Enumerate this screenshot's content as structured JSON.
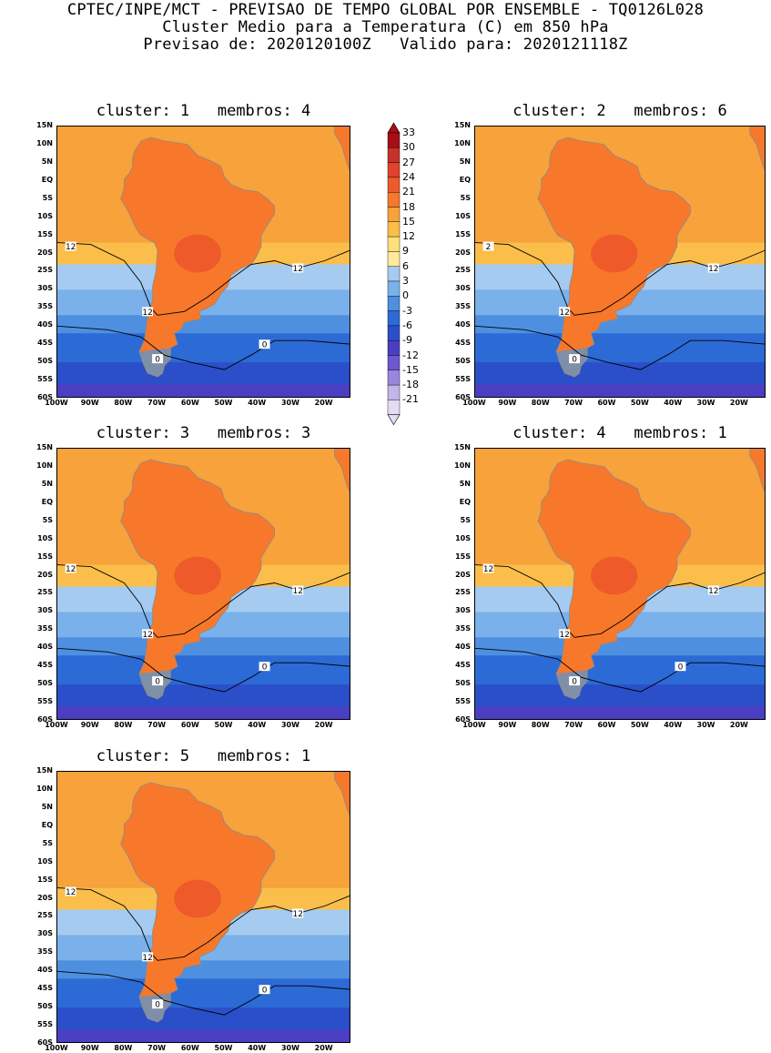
{
  "header": {
    "line1": "CPTEC/INPE/MCT - PREVISAO DE TEMPO GLOBAL POR ENSEMBLE - TQ0126L028",
    "line2": "Cluster Medio para a Temperatura (C) em 850 hPa",
    "line3": "Previsao de: 2020120100Z   Valido para: 2020121118Z"
  },
  "axes": {
    "lat_labels": [
      "15N",
      "10N",
      "5N",
      "EQ",
      "5S",
      "10S",
      "15S",
      "20S",
      "25S",
      "30S",
      "35S",
      "40S",
      "45S",
      "50S",
      "55S",
      "60S"
    ],
    "lon_labels": [
      "100W",
      "90W",
      "80W",
      "70W",
      "60W",
      "50W",
      "40W",
      "30W",
      "20W"
    ]
  },
  "colorbar": {
    "labels": [
      "33",
      "30",
      "27",
      "24",
      "21",
      "18",
      "15",
      "12",
      "9",
      "6",
      "3",
      "0",
      "-3",
      "-6",
      "-9",
      "-12",
      "-15",
      "-18",
      "-21"
    ],
    "colors": [
      "#a50f15",
      "#c8302a",
      "#e0432b",
      "#ef5a2b",
      "#f7782a",
      "#f7a23a",
      "#fbbe4a",
      "#fde07a",
      "#ffeb99",
      "#a6cbf0",
      "#7ab1ea",
      "#4f8fe0",
      "#2c6ad6",
      "#2a4fc9",
      "#4a3fc2",
      "#6d58d0",
      "#9a86de",
      "#c3b5ea",
      "#e4dcf5"
    ]
  },
  "clusters": [
    {
      "title": "cluster: 1   membros: 4",
      "contour_labels": [
        "12",
        "12",
        "12",
        "0",
        "0"
      ]
    },
    {
      "title": "cluster: 2   membros: 6",
      "contour_labels": [
        "2",
        "12",
        "12",
        "0"
      ]
    },
    {
      "title": "cluster: 3   membros: 3",
      "contour_labels": [
        "12",
        "12",
        "12",
        "0",
        "0"
      ]
    },
    {
      "title": "cluster: 4   membros: 1",
      "contour_labels": [
        "12",
        "12",
        "12",
        "0",
        "0"
      ]
    },
    {
      "title": "cluster: 5   membros: 1",
      "contour_labels": [
        "12",
        "12",
        "12",
        "0",
        "0"
      ]
    }
  ]
}
